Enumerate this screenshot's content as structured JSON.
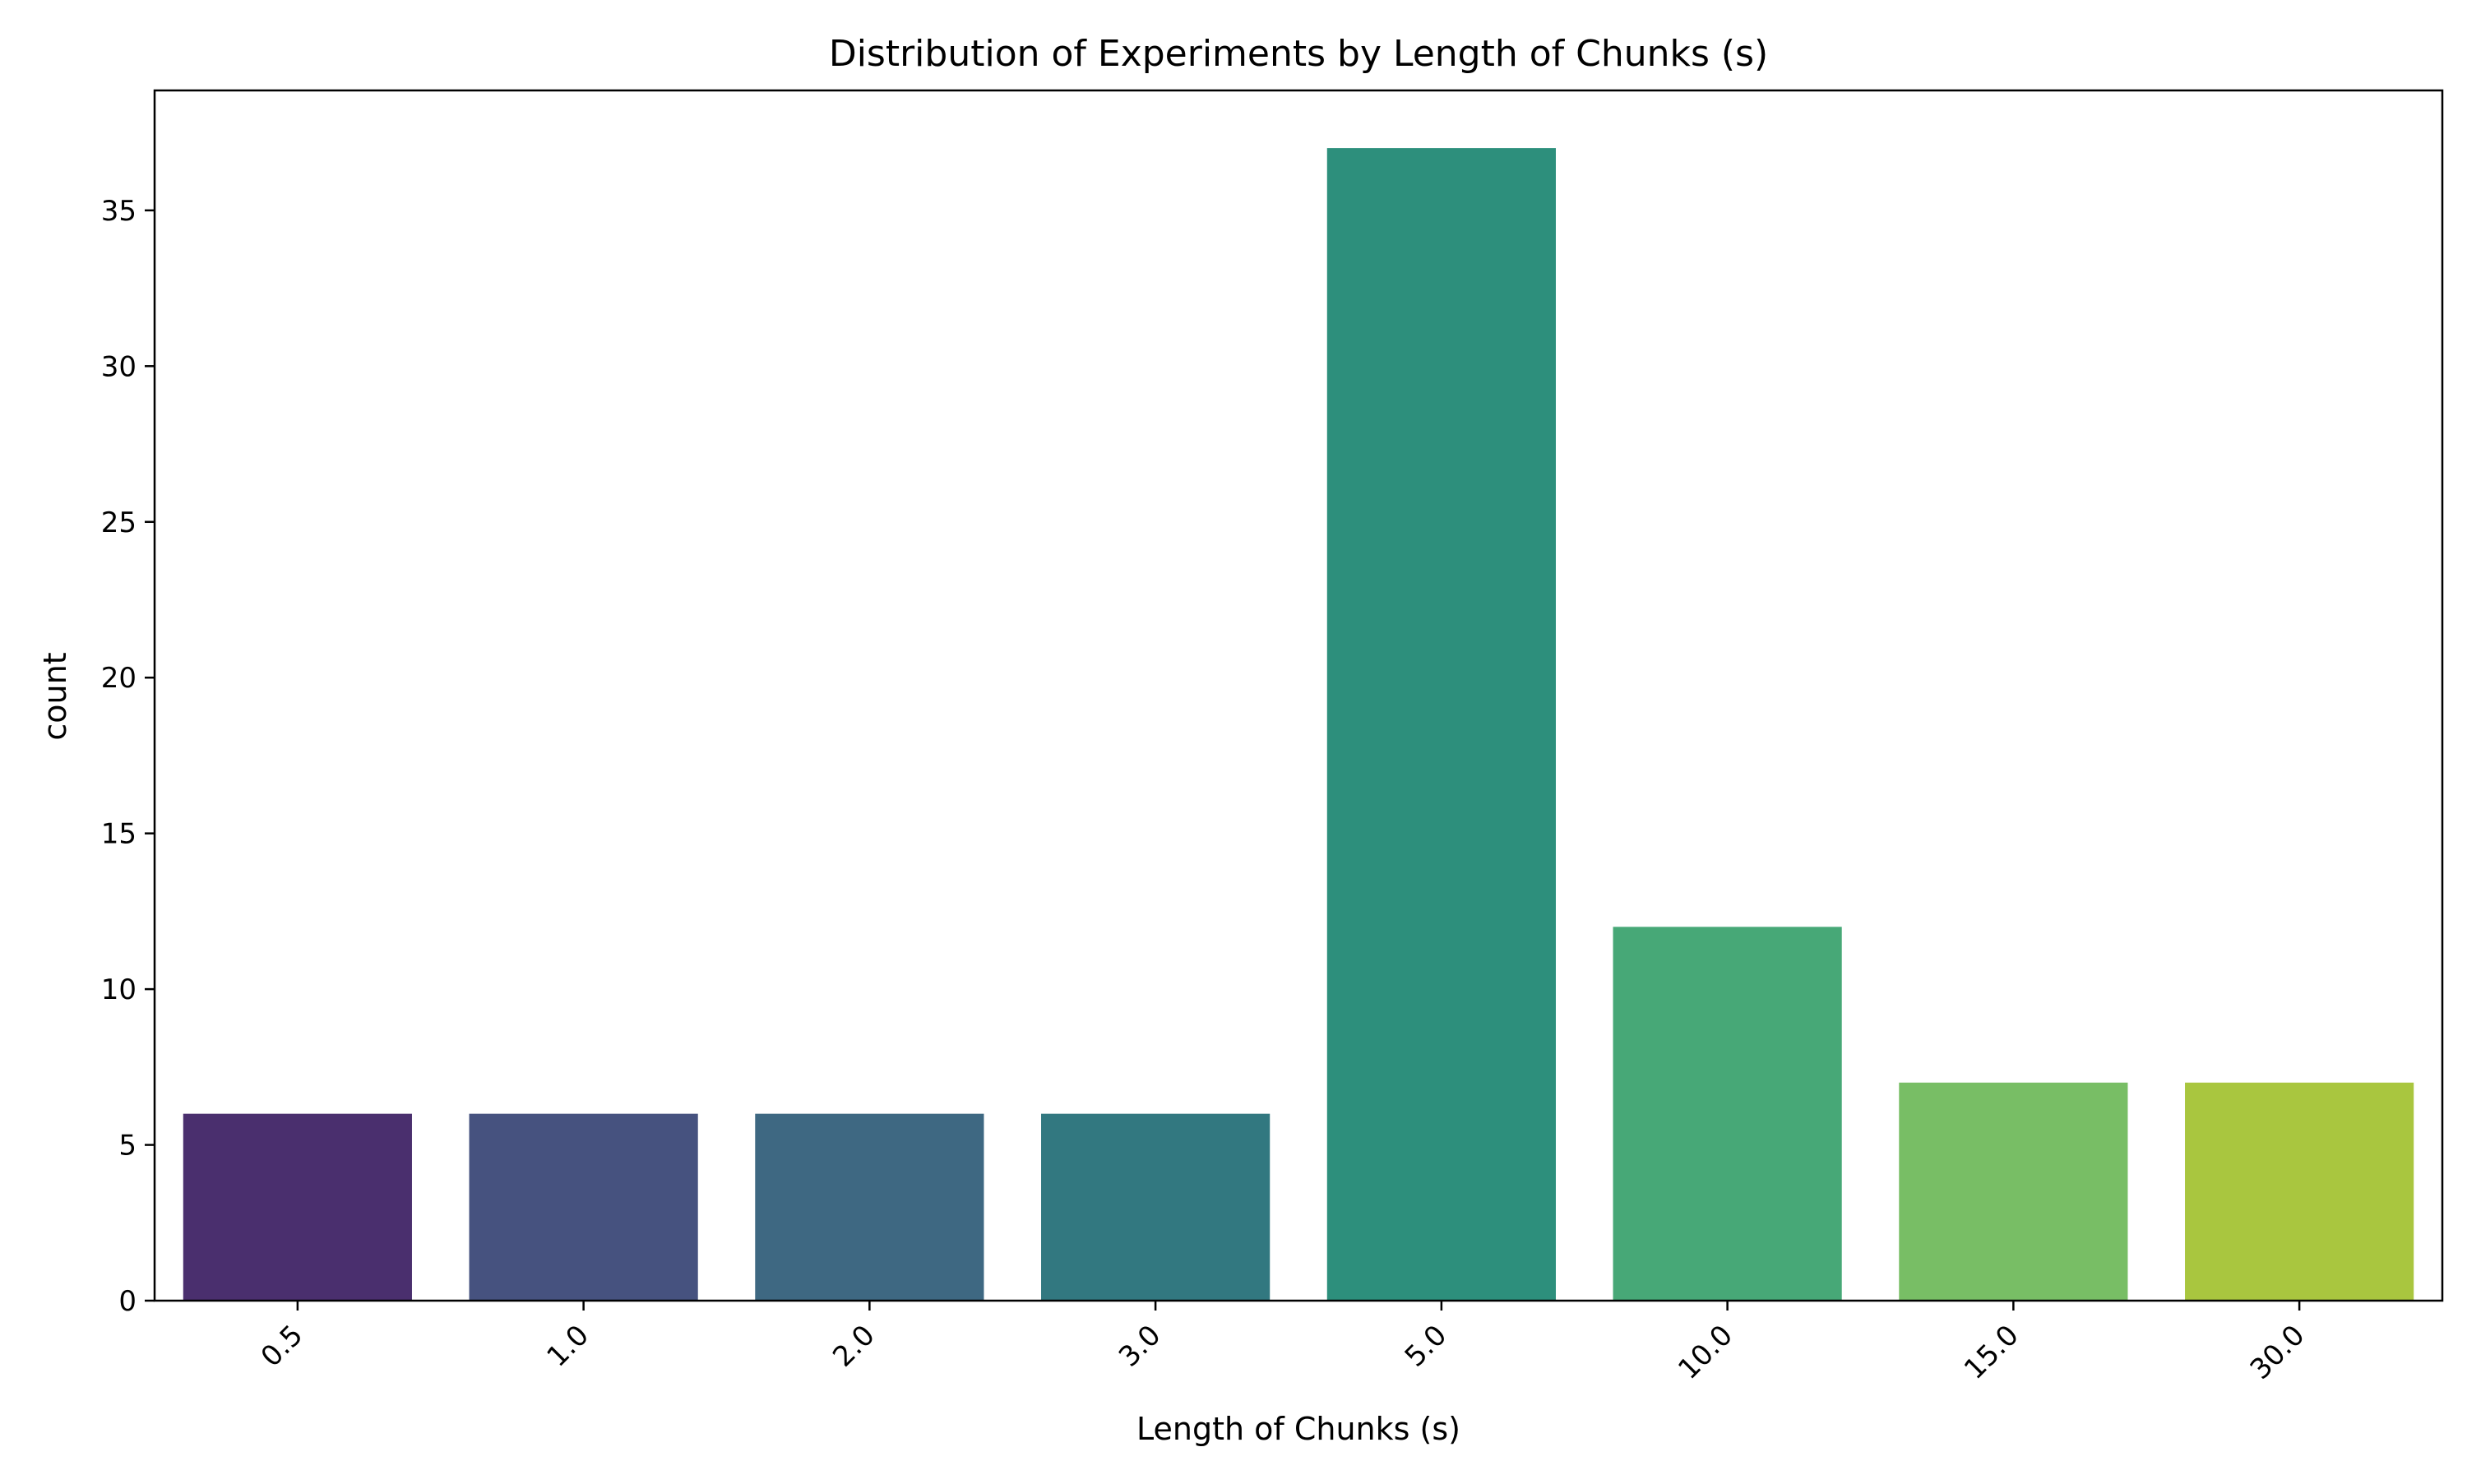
{
  "chart_data": {
    "type": "bar",
    "title": "Distribution of Experiments by Length of Chunks (s)",
    "xlabel": "Length of Chunks (s)",
    "ylabel": "count",
    "categories": [
      "0.5",
      "1.0",
      "2.0",
      "3.0",
      "5.0",
      "10.0",
      "15.0",
      "30.0"
    ],
    "values": [
      6,
      6,
      6,
      6,
      37,
      12,
      7,
      7
    ],
    "colors": [
      "#4a2f6e",
      "#46527f",
      "#3e6882",
      "#327880",
      "#2d8f7c",
      "#47a877",
      "#78be65",
      "#a9c63f"
    ],
    "ylim": [
      0,
      38.85
    ],
    "yticks": [
      0,
      5,
      10,
      15,
      20,
      25,
      30,
      35
    ],
    "grid": false,
    "legend": "none"
  }
}
